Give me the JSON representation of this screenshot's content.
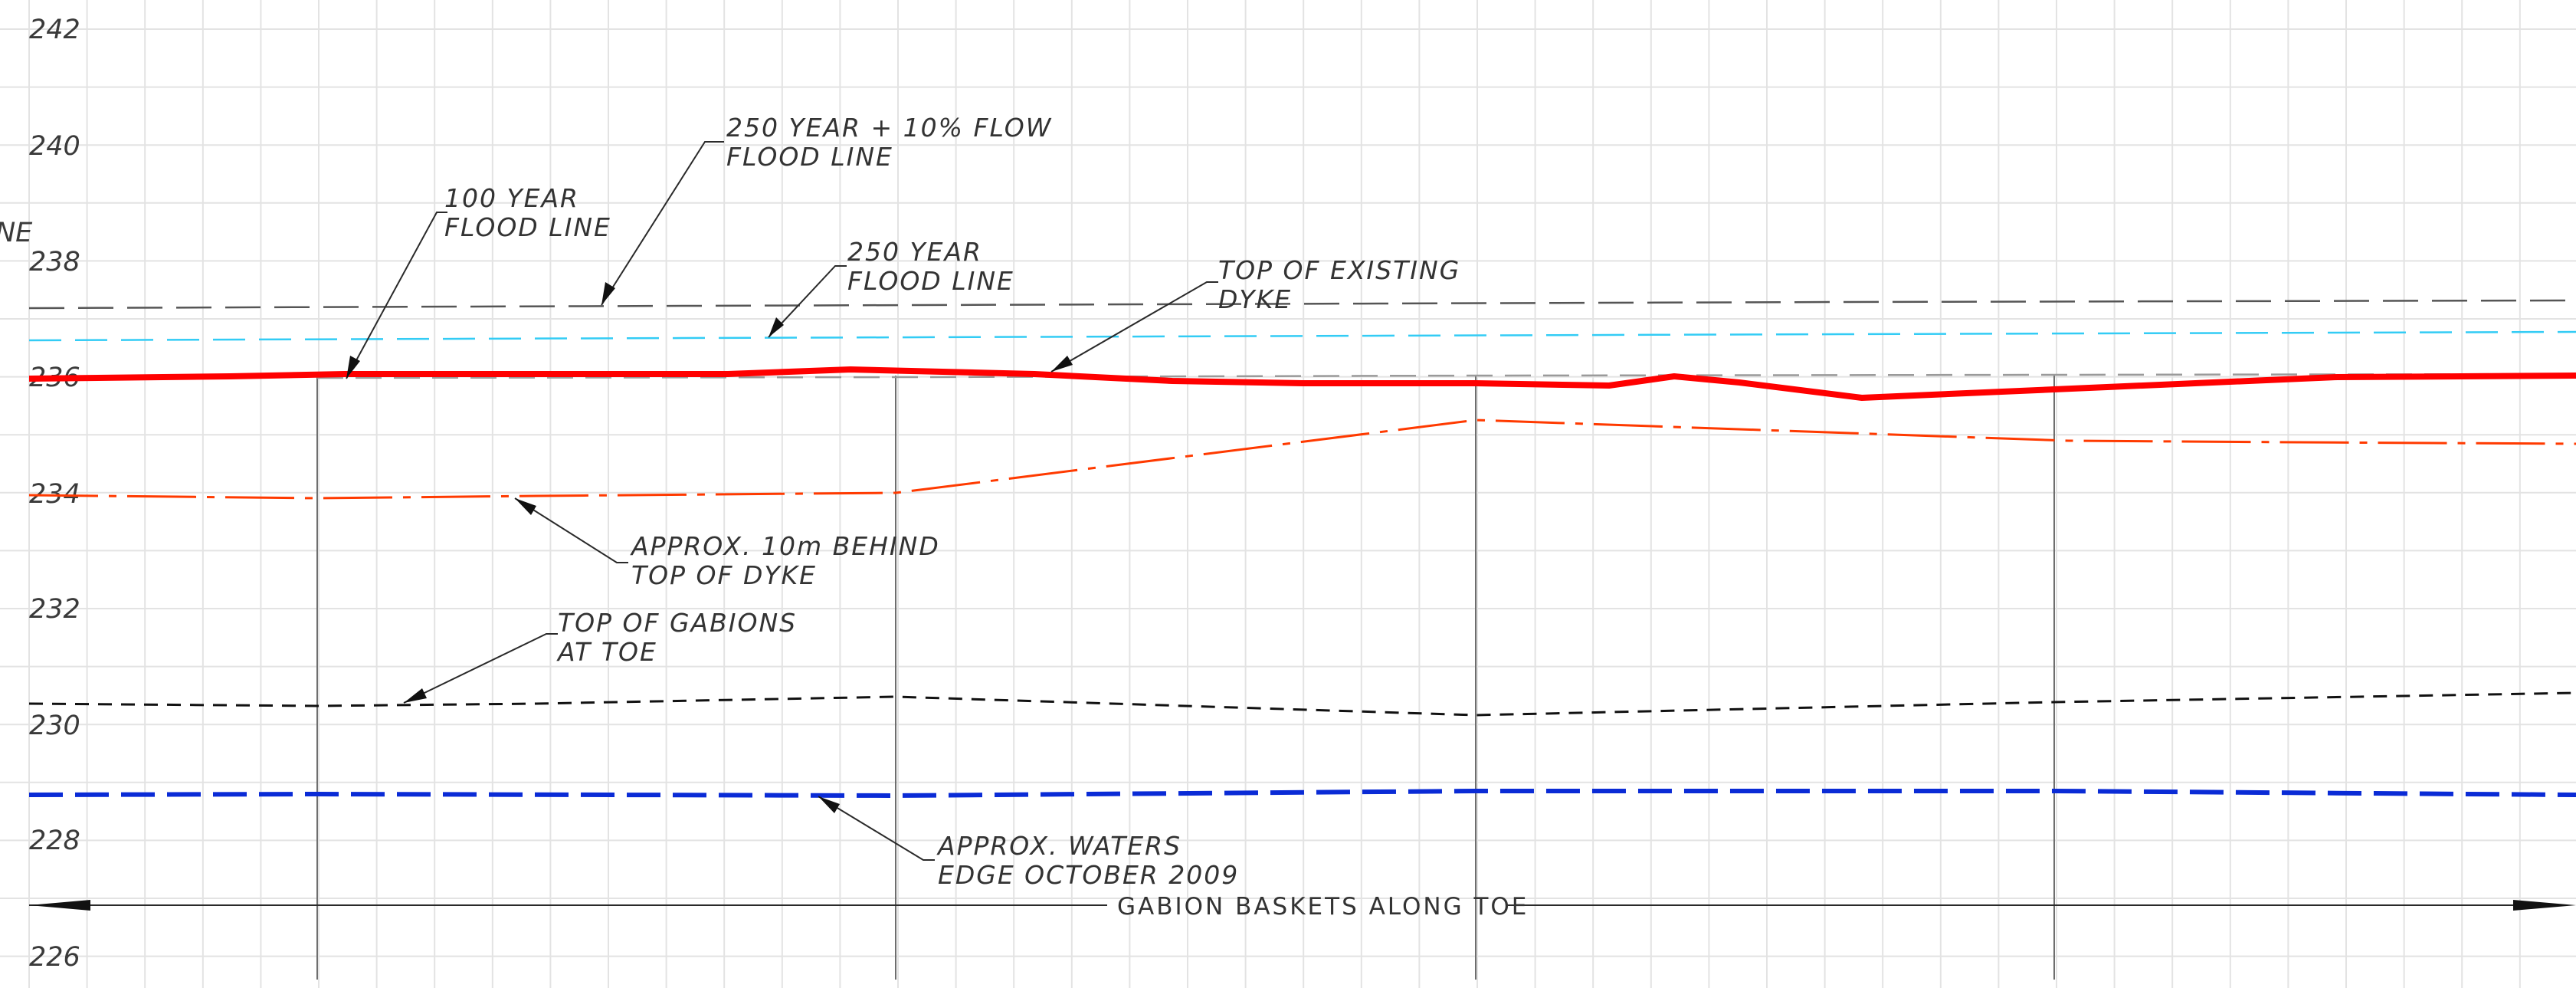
{
  "y_axis": {
    "labels": [
      "242",
      "240",
      "238",
      "236",
      "234",
      "232",
      "230",
      "228",
      "226"
    ],
    "cut_label": "NE"
  },
  "colors": {
    "grid": "#e3e3e3",
    "dyke_top": "#ff0000",
    "behind_dyke": "#ff3a00",
    "gabions": "#111111",
    "waters_edge": "#0a2bd6",
    "flood_100": "#9a9a9a",
    "flood_250": "#33ccf5",
    "flood_250_10pct": "#555555"
  },
  "annotations": {
    "flood_250_10pct": {
      "line1": "250 YEAR + 10% FLOW",
      "line2": "FLOOD LINE"
    },
    "flood_100": {
      "line1": "100 YEAR",
      "line2": "FLOOD LINE"
    },
    "flood_250": {
      "line1": "250 YEAR",
      "line2": "FLOOD LINE"
    },
    "dyke_top": {
      "line1": "TOP OF EXISTING",
      "line2": "DYKE"
    },
    "behind_dyke": {
      "line1": "APPROX. 10m BEHIND",
      "line2": "TOP OF  DYKE"
    },
    "gabions": {
      "line1": "TOP OF GABIONS",
      "line2": "AT TOE"
    },
    "waters_edge": {
      "line1": "APPROX. WATERS",
      "line2": "EDGE OCTOBER 2009"
    }
  },
  "dimension_label": "GABION BASKETS ALONG TOE",
  "profiles": {
    "flood_250_10pct": 237.2,
    "flood_250": 236.7,
    "flood_100": 236.0,
    "dyke_top": [
      235.98,
      236.04,
      236.08,
      236.08,
      236.16,
      236.08,
      235.94,
      235.9,
      235.92,
      235.86,
      236.0,
      235.58,
      235.78,
      236.02,
      236.05
    ],
    "behind_dyke": [
      233.98,
      233.93,
      233.96,
      234.03,
      235.25,
      234.9,
      234.88,
      234.86
    ],
    "gabions": [
      230.35,
      230.32,
      230.35,
      230.46,
      230.14,
      230.35,
      230.52
    ],
    "waters_edge": [
      228.78,
      228.8,
      228.78,
      228.84,
      228.84,
      228.8
    ]
  }
}
